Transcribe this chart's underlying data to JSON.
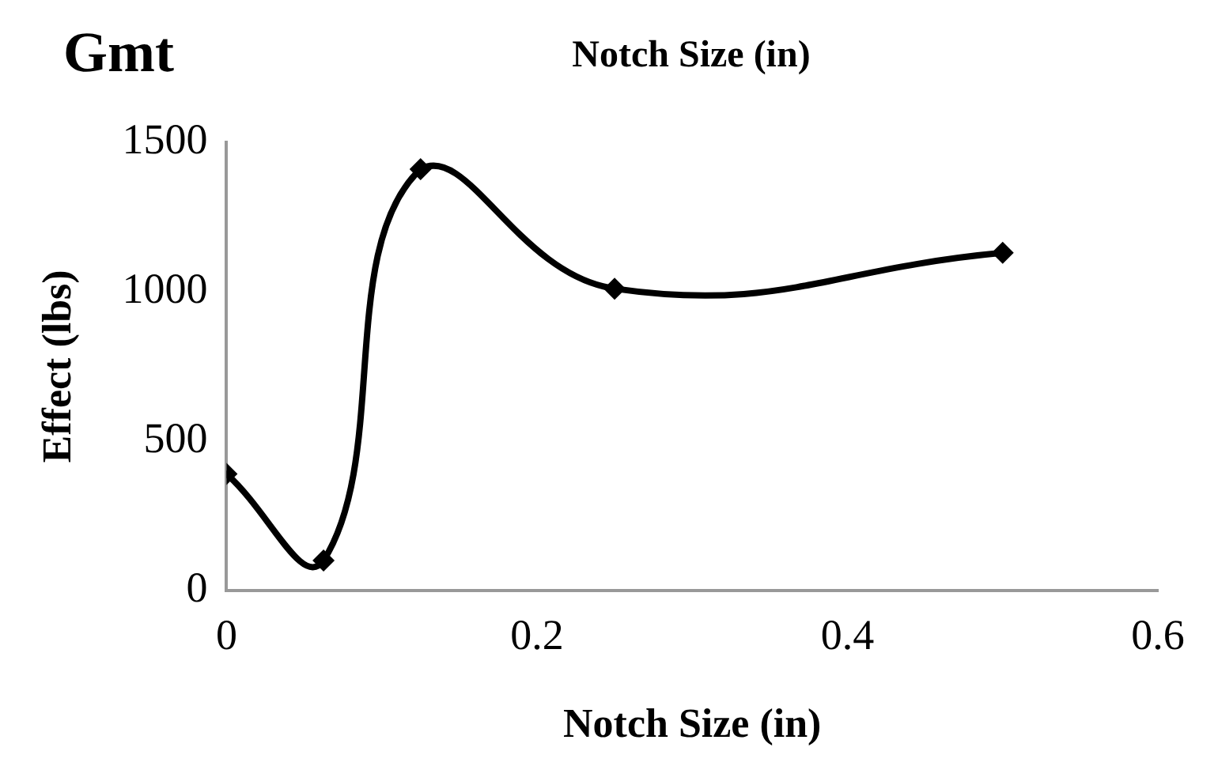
{
  "chart_data": {
    "type": "line",
    "title": "Gmt",
    "subtitle": "Notch Size (in)",
    "xlabel": "Notch Size (in)",
    "ylabel": "Effect (lbs)",
    "x": [
      0,
      0.0625,
      0.125,
      0.25,
      0.5
    ],
    "series": [
      {
        "color": "#000000",
        "values": [
          390,
          100,
          1410,
          1010,
          1130
        ]
      }
    ],
    "xlim": [
      0,
      0.6
    ],
    "xticks": [
      0,
      0.2,
      0.4,
      0.6
    ],
    "ylim": [
      0,
      1500
    ],
    "yticks": [
      0,
      500,
      1000,
      1500
    ],
    "grid": false,
    "legend": false,
    "marker": "diamond",
    "line_style": "solid"
  }
}
